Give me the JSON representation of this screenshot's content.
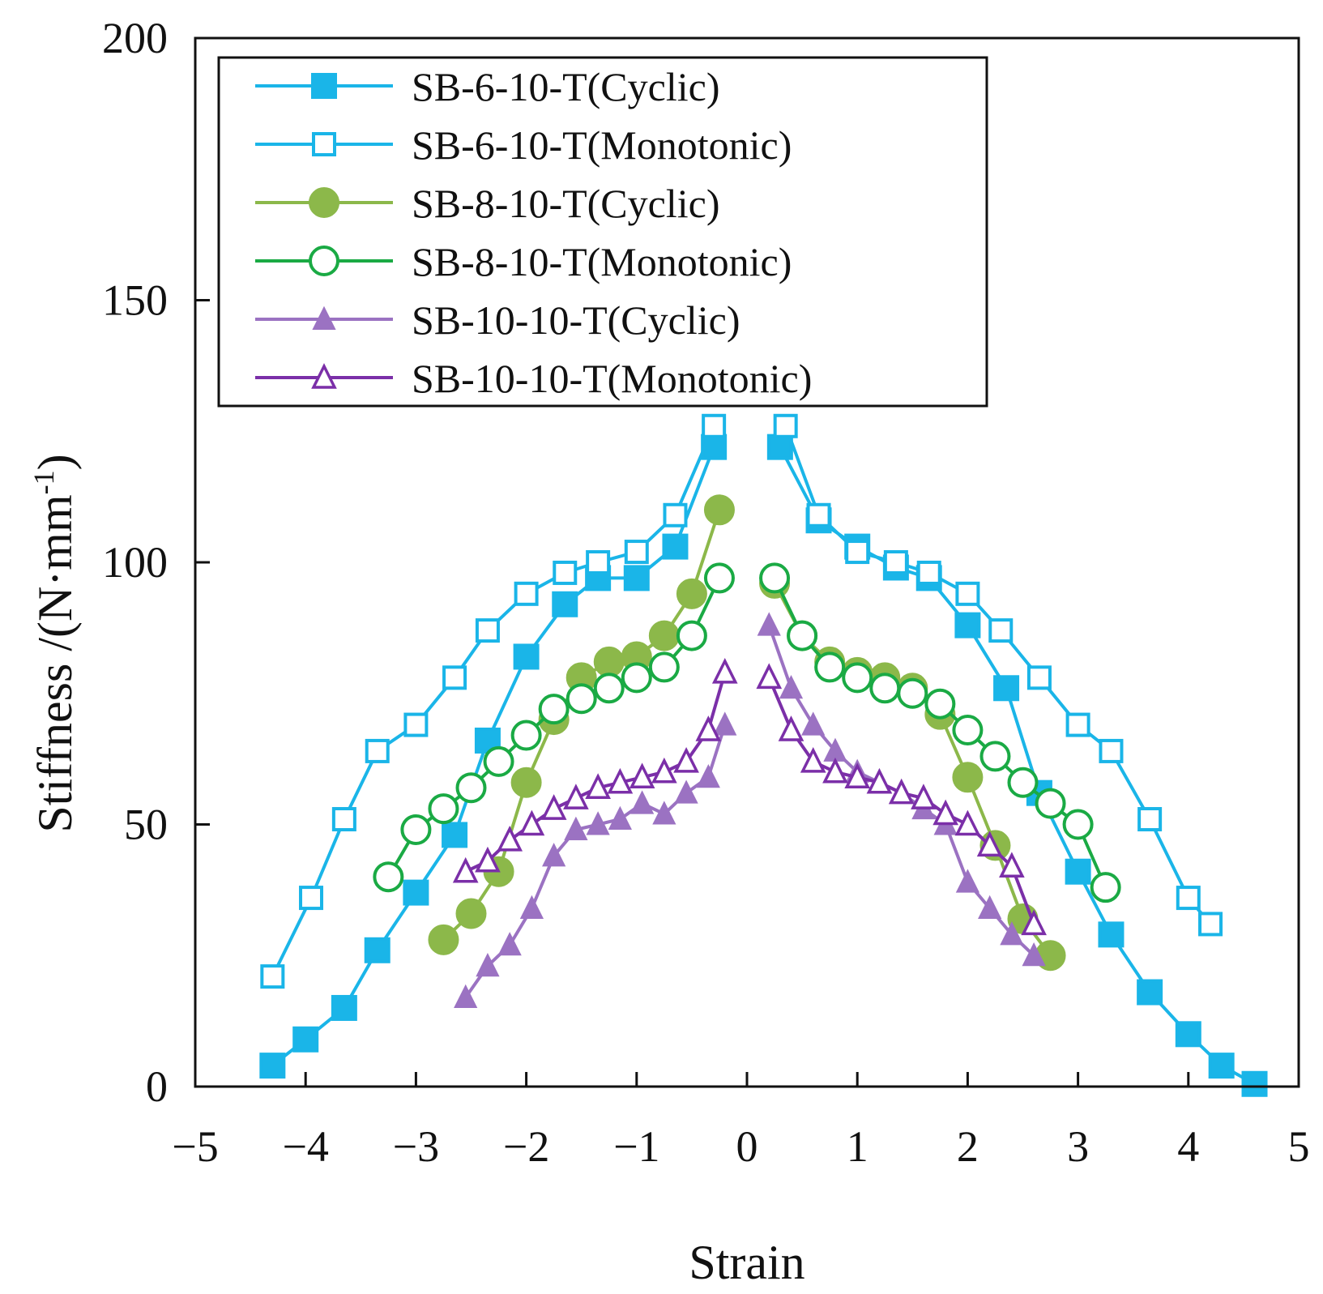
{
  "chart_data": {
    "type": "line",
    "title": "",
    "xlabel": "Strain",
    "ylabel": "Stiffness /(N·mm",
    "ylabel_superscript": "-1",
    "ylabel_close": ")",
    "xlim": [
      -5,
      5
    ],
    "ylim": [
      0,
      200
    ],
    "xticks": [
      -5,
      -4,
      -3,
      -2,
      -1,
      0,
      1,
      2,
      3,
      4,
      5
    ],
    "xtick_labels": [
      "−5",
      "−4",
      "−3",
      "−2",
      "−1",
      "0",
      "1",
      "2",
      "3",
      "4",
      "5"
    ],
    "yticks": [
      0,
      50,
      100,
      150,
      200
    ],
    "ytick_labels": [
      "0",
      "50",
      "100",
      "150",
      "200"
    ],
    "grid": false,
    "legend_position": "top-left",
    "series": [
      {
        "name": "SB-6-10-T(Cyclic)",
        "color": "#1ab5e8",
        "marker": "square",
        "filled": true,
        "segments": [
          [
            [
              -4.3,
              4
            ],
            [
              -4.0,
              9
            ],
            [
              -3.65,
              15
            ],
            [
              -3.35,
              26
            ],
            [
              -3.0,
              37
            ],
            [
              -2.65,
              48
            ],
            [
              -2.35,
              66
            ],
            [
              -2.0,
              82
            ],
            [
              -1.65,
              92
            ],
            [
              -1.35,
              97
            ],
            [
              -1.0,
              97
            ],
            [
              -0.65,
              103
            ],
            [
              -0.3,
              122
            ]
          ],
          [
            [
              0.3,
              122
            ],
            [
              0.65,
              108
            ],
            [
              1.0,
              103
            ],
            [
              1.35,
              99
            ],
            [
              1.65,
              97
            ],
            [
              2.0,
              88
            ],
            [
              2.35,
              76
            ],
            [
              2.65,
              56
            ],
            [
              3.0,
              41
            ],
            [
              3.3,
              29
            ],
            [
              3.65,
              18
            ],
            [
              4.0,
              10
            ],
            [
              4.3,
              4
            ],
            [
              4.6,
              0.5
            ]
          ]
        ]
      },
      {
        "name": "SB-6-10-T(Monotonic)",
        "color": "#1ab5e8",
        "marker": "square",
        "filled": false,
        "segments": [
          [
            [
              -4.3,
              21
            ],
            [
              -3.95,
              36
            ],
            [
              -3.65,
              51
            ],
            [
              -3.35,
              64
            ],
            [
              -3.0,
              69
            ],
            [
              -2.65,
              78
            ],
            [
              -2.35,
              87
            ],
            [
              -2.0,
              94
            ],
            [
              -1.65,
              98
            ],
            [
              -1.35,
              100
            ],
            [
              -1.0,
              102
            ],
            [
              -0.65,
              109
            ],
            [
              -0.3,
              126
            ]
          ],
          [
            [
              0.35,
              126
            ],
            [
              0.65,
              109
            ],
            [
              1.0,
              102
            ],
            [
              1.35,
              100
            ],
            [
              1.65,
              98
            ],
            [
              2.0,
              94
            ],
            [
              2.3,
              87
            ],
            [
              2.65,
              78
            ],
            [
              3.0,
              69
            ],
            [
              3.3,
              64
            ],
            [
              3.65,
              51
            ],
            [
              4.0,
              36
            ],
            [
              4.2,
              31
            ]
          ]
        ]
      },
      {
        "name": "SB-8-10-T(Cyclic)",
        "color": "#8cb84a",
        "marker": "circle",
        "filled": true,
        "segments": [
          [
            [
              -2.75,
              28
            ],
            [
              -2.5,
              33
            ],
            [
              -2.25,
              41
            ],
            [
              -2.0,
              58
            ],
            [
              -1.75,
              70
            ],
            [
              -1.5,
              78
            ],
            [
              -1.25,
              81
            ],
            [
              -1.0,
              82
            ],
            [
              -0.75,
              86
            ],
            [
              -0.5,
              94
            ],
            [
              -0.25,
              110
            ]
          ],
          [
            [
              0.25,
              96
            ],
            [
              0.5,
              86
            ],
            [
              0.75,
              81
            ],
            [
              1.0,
              79
            ],
            [
              1.25,
              78
            ],
            [
              1.5,
              76
            ],
            [
              1.75,
              71
            ],
            [
              2.0,
              59
            ],
            [
              2.25,
              46
            ],
            [
              2.5,
              32
            ],
            [
              2.75,
              25
            ]
          ]
        ]
      },
      {
        "name": "SB-8-10-T(Monotonic)",
        "color": "#1aaa44",
        "marker": "circle",
        "filled": false,
        "segments": [
          [
            [
              -3.25,
              40
            ],
            [
              -3.0,
              49
            ],
            [
              -2.75,
              53
            ],
            [
              -2.5,
              57
            ],
            [
              -2.25,
              62
            ],
            [
              -2.0,
              67
            ],
            [
              -1.75,
              72
            ],
            [
              -1.5,
              74
            ],
            [
              -1.25,
              76
            ],
            [
              -1.0,
              78
            ],
            [
              -0.75,
              80
            ],
            [
              -0.5,
              86
            ],
            [
              -0.25,
              97
            ]
          ],
          [
            [
              0.25,
              97
            ],
            [
              0.5,
              86
            ],
            [
              0.75,
              80
            ],
            [
              1.0,
              78
            ],
            [
              1.25,
              76
            ],
            [
              1.5,
              75
            ],
            [
              1.75,
              73
            ],
            [
              2.0,
              68
            ],
            [
              2.25,
              63
            ],
            [
              2.5,
              58
            ],
            [
              2.75,
              54
            ],
            [
              3.0,
              50
            ],
            [
              3.25,
              38
            ]
          ]
        ]
      },
      {
        "name": "SB-10-10-T(Cyclic)",
        "color": "#9b72c2",
        "marker": "triangle",
        "filled": true,
        "segments": [
          [
            [
              -2.55,
              17
            ],
            [
              -2.35,
              23
            ],
            [
              -2.15,
              27
            ],
            [
              -1.95,
              34
            ],
            [
              -1.75,
              44
            ],
            [
              -1.55,
              49
            ],
            [
              -1.35,
              50
            ],
            [
              -1.15,
              51
            ],
            [
              -0.95,
              54
            ],
            [
              -0.75,
              52
            ],
            [
              -0.55,
              56
            ],
            [
              -0.35,
              59
            ],
            [
              -0.2,
              69
            ]
          ],
          [
            [
              0.2,
              88
            ],
            [
              0.4,
              76
            ],
            [
              0.6,
              69
            ],
            [
              0.8,
              64
            ],
            [
              1.0,
              60
            ],
            [
              1.2,
              58
            ],
            [
              1.4,
              56
            ],
            [
              1.6,
              53
            ],
            [
              1.8,
              50
            ],
            [
              2.0,
              39
            ],
            [
              2.2,
              34
            ],
            [
              2.4,
              29
            ],
            [
              2.6,
              25
            ]
          ]
        ]
      },
      {
        "name": "SB-10-10-T(Monotonic)",
        "color": "#7b2fa8",
        "marker": "triangle",
        "filled": false,
        "segments": [
          [
            [
              -2.55,
              41
            ],
            [
              -2.35,
              43
            ],
            [
              -2.15,
              47
            ],
            [
              -1.95,
              50
            ],
            [
              -1.75,
              53
            ],
            [
              -1.55,
              55
            ],
            [
              -1.35,
              57
            ],
            [
              -1.15,
              58
            ],
            [
              -0.95,
              59
            ],
            [
              -0.75,
              60
            ],
            [
              -0.55,
              62
            ],
            [
              -0.35,
              68
            ],
            [
              -0.2,
              79
            ]
          ],
          [
            [
              0.2,
              78
            ],
            [
              0.4,
              68
            ],
            [
              0.6,
              62
            ],
            [
              0.8,
              60
            ],
            [
              1.0,
              59
            ],
            [
              1.2,
              58
            ],
            [
              1.4,
              56
            ],
            [
              1.6,
              55
            ],
            [
              1.8,
              52
            ],
            [
              2.0,
              50
            ],
            [
              2.2,
              46
            ],
            [
              2.4,
              42
            ],
            [
              2.6,
              31
            ]
          ]
        ]
      }
    ]
  }
}
